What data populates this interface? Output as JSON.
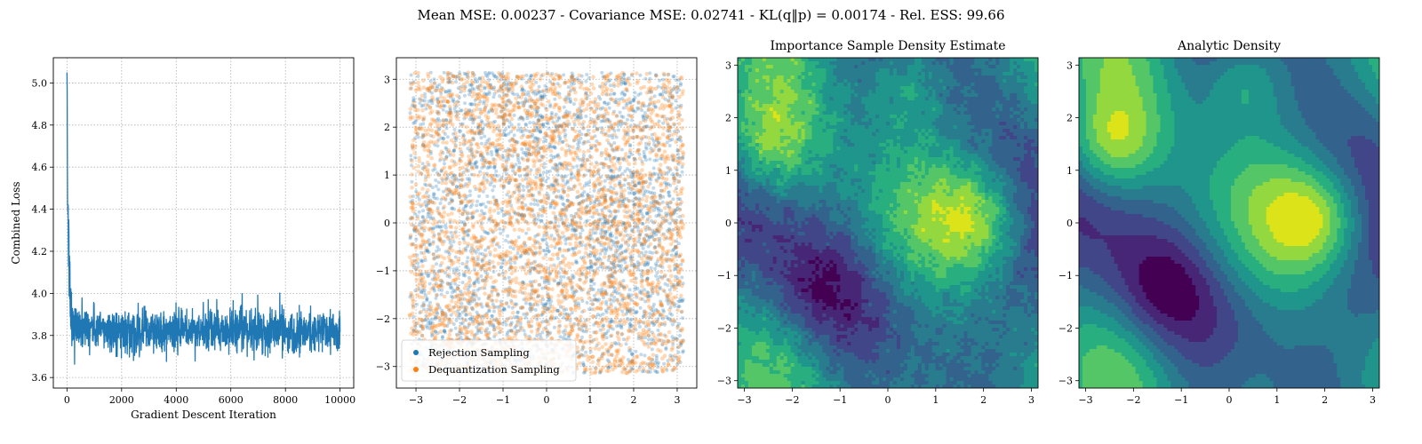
{
  "figure": {
    "suptitle": "Mean MSE: 0.00237 - Covariance MSE: 0.02741 - KL(q‖p) = 0.00174 - Rel. ESS: 99.66"
  },
  "colors": {
    "loss_line": "#1f77b4",
    "rejection": "#1f77b4",
    "dequantization": "#ff7f0e",
    "viridis": [
      "#440154",
      "#482677",
      "#404688",
      "#33638d",
      "#287c8e",
      "#1f958b",
      "#29af7f",
      "#55c667",
      "#94d840",
      "#dce319"
    ]
  },
  "chart_data": [
    {
      "type": "line",
      "title": "",
      "xlabel": "Gradient Descent Iteration",
      "ylabel": "Combined Loss",
      "xlim": [
        -500,
        10500
      ],
      "ylim": [
        3.55,
        5.12
      ],
      "xticks": [
        0,
        2000,
        4000,
        6000,
        8000,
        10000
      ],
      "yticks": [
        3.6,
        3.8,
        4.0,
        4.2,
        4.4,
        4.6,
        4.8,
        5.0
      ],
      "grid": true,
      "series": [
        {
          "values_summary": {
            "iterations": 10000,
            "initial": 5.05,
            "plateau_mean": 3.82,
            "plateau_noise": 0.05,
            "min": 3.62,
            "max": 4.02
          }
        }
      ]
    },
    {
      "type": "scatter",
      "title": "",
      "xlim": [
        -3.45,
        3.45
      ],
      "ylim": [
        -3.45,
        3.45
      ],
      "xticks": [
        -3,
        -2,
        -1,
        0,
        1,
        2,
        3
      ],
      "yticks": [
        -3,
        -2,
        -1,
        0,
        1,
        2,
        3
      ],
      "grid": true,
      "legend_placement": "lower-left",
      "series": [
        {
          "name": "Rejection Sampling",
          "color": "#1f77b4",
          "n_points": 5000,
          "domain": [
            -3.14,
            3.14
          ]
        },
        {
          "name": "Dequantization Sampling",
          "color": "#ff7f0e",
          "n_points": 5000,
          "domain": [
            -3.14,
            3.14
          ]
        }
      ]
    },
    {
      "type": "heatmap",
      "title": "Importance Sample Density Estimate",
      "xlim": [
        -3.14,
        3.14
      ],
      "ylim": [
        -3.14,
        3.14
      ],
      "xticks": [
        -3,
        -2,
        -1,
        0,
        1,
        2,
        3
      ],
      "yticks": [
        -3,
        -2,
        -1,
        0,
        1,
        2,
        3
      ],
      "levels": 10,
      "noisy": true
    },
    {
      "type": "heatmap",
      "title": "Analytic Density",
      "xlim": [
        -3.14,
        3.14
      ],
      "ylim": [
        -3.14,
        3.14
      ],
      "xticks": [
        -3,
        -2,
        -1,
        0,
        1,
        2,
        3
      ],
      "yticks": [
        -3,
        -2,
        -1,
        0,
        1,
        2,
        3
      ],
      "levels": 10,
      "noisy": false
    }
  ]
}
